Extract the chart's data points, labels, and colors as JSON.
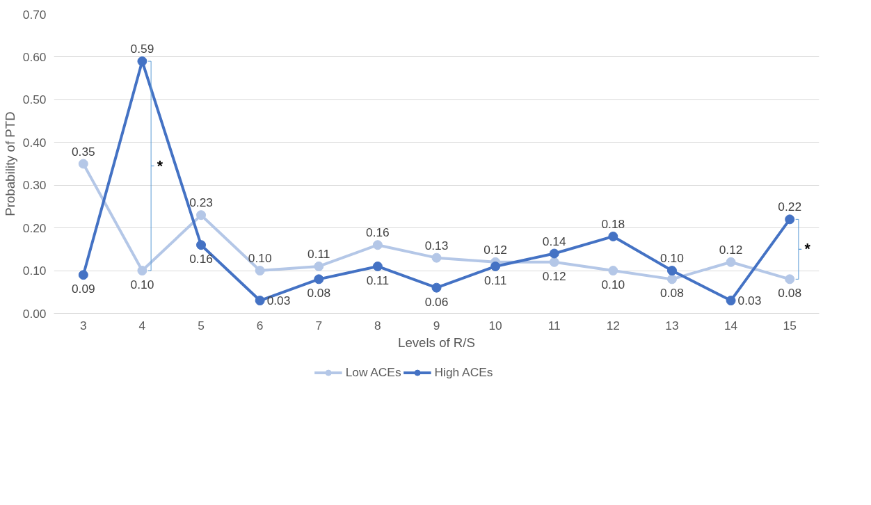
{
  "chart_data": {
    "type": "line",
    "xlabel": "Levels of R/S",
    "ylabel": "Probability of PTD",
    "categories": [
      "3",
      "4",
      "5",
      "6",
      "7",
      "8",
      "9",
      "10",
      "11",
      "12",
      "13",
      "14",
      "15"
    ],
    "series": [
      {
        "name": "Low ACEs",
        "color": "#b4c7e7",
        "values": [
          0.35,
          0.1,
          0.23,
          0.1,
          0.11,
          0.16,
          0.13,
          0.12,
          0.12,
          0.1,
          0.08,
          0.12,
          0.08
        ],
        "value_labels": [
          "0.35",
          "0.10",
          "0.23",
          "0.10",
          "0.11",
          "0.16",
          "0.13",
          "0.12",
          "0.12",
          "0.10",
          "0.08",
          "0.12",
          "0.08"
        ]
      },
      {
        "name": "High ACEs",
        "color": "#4472c4",
        "values": [
          0.09,
          0.59,
          0.16,
          0.03,
          0.08,
          0.11,
          0.06,
          0.11,
          0.14,
          0.18,
          0.1,
          0.03,
          0.22
        ],
        "value_labels": [
          "0.09",
          "0.59",
          "0.16",
          "0.03",
          "0.08",
          "0.11",
          "0.06",
          "0.11",
          "0.14",
          "0.18",
          "0.10",
          "0.03",
          "0.22"
        ]
      }
    ],
    "ylim": [
      0,
      0.7
    ],
    "yticks": [
      {
        "value": 0,
        "label": "0.00"
      },
      {
        "value": 0.1,
        "label": "0.10"
      },
      {
        "value": 0.2,
        "label": "0.20"
      },
      {
        "value": 0.3,
        "label": "0.30"
      },
      {
        "value": 0.4,
        "label": "0.40"
      },
      {
        "value": 0.5,
        "label": "0.50"
      },
      {
        "value": 0.6,
        "label": "0.60"
      },
      {
        "value": 0.7,
        "label": "0.70"
      }
    ],
    "grid": "y",
    "legend": "bottom",
    "marker": "circle",
    "line_style": "solid",
    "annotations": [
      "*",
      "*"
    ]
  }
}
